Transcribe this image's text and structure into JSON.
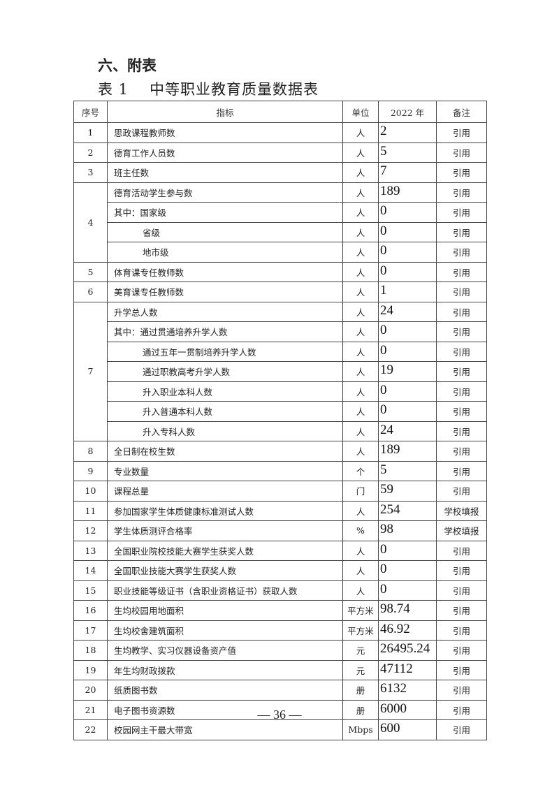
{
  "section_title": "六、附表",
  "table_title": {
    "number": "表 1",
    "name": "中等职业教育质量数据表"
  },
  "headers": [
    "序号",
    "指标",
    "单位",
    "2022 年",
    "备注"
  ],
  "groups": [
    {
      "no": "1",
      "rows": [
        {
          "label": "思政课程教师数",
          "unit": "人",
          "value": "2",
          "note": "引用"
        }
      ]
    },
    {
      "no": "2",
      "rows": [
        {
          "label": "德育工作人员数",
          "unit": "人",
          "value": "5",
          "note": "引用"
        }
      ]
    },
    {
      "no": "3",
      "rows": [
        {
          "label": "班主任数",
          "unit": "人",
          "value": "7",
          "note": "引用"
        }
      ]
    },
    {
      "no": "4",
      "rows": [
        {
          "label": "德育活动学生参与数",
          "unit": "人",
          "value": "189",
          "note": "引用"
        },
        {
          "label": "其中：国家级",
          "unit": "人",
          "value": "0",
          "note": "引用"
        },
        {
          "label": "省级",
          "unit": "人",
          "value": "0",
          "note": "引用",
          "sub": true
        },
        {
          "label": "地市级",
          "unit": "人",
          "value": "0",
          "note": "引用",
          "sub": true
        }
      ]
    },
    {
      "no": "5",
      "rows": [
        {
          "label": "体育课专任教师数",
          "unit": "人",
          "value": "0",
          "note": "引用"
        }
      ]
    },
    {
      "no": "6",
      "rows": [
        {
          "label": "美育课专任教师数",
          "unit": "人",
          "value": "1",
          "note": "引用"
        }
      ]
    },
    {
      "no": "7",
      "rows": [
        {
          "label": "升学总人数",
          "unit": "人",
          "value": "24",
          "note": "引用"
        },
        {
          "label": "其中：通过贯通培养升学人数",
          "unit": "人",
          "value": "0",
          "note": "引用"
        },
        {
          "label": "通过五年一贯制培养升学人数",
          "unit": "人",
          "value": "0",
          "note": "引用",
          "sub": true
        },
        {
          "label": "通过职教高考升学人数",
          "unit": "人",
          "value": "19",
          "note": "引用",
          "sub": true
        },
        {
          "label": "升入职业本科人数",
          "unit": "人",
          "value": "0",
          "note": "引用",
          "sub": true
        },
        {
          "label": "升入普通本科人数",
          "unit": "人",
          "value": "0",
          "note": "引用",
          "sub": true
        },
        {
          "label": "升入专科人数",
          "unit": "人",
          "value": "24",
          "note": "引用",
          "sub": true
        }
      ]
    },
    {
      "no": "8",
      "rows": [
        {
          "label": "全日制在校生数",
          "unit": "人",
          "value": "189",
          "note": "引用"
        }
      ]
    },
    {
      "no": "9",
      "rows": [
        {
          "label": "专业数量",
          "unit": "个",
          "value": "5",
          "note": "引用"
        }
      ]
    },
    {
      "no": "10",
      "rows": [
        {
          "label": "课程总量",
          "unit": "门",
          "value": "59",
          "note": "引用"
        }
      ]
    },
    {
      "no": "11",
      "rows": [
        {
          "label": "参加国家学生体质健康标准测试人数",
          "unit": "人",
          "value": "254",
          "note": "学校填报"
        }
      ]
    },
    {
      "no": "12",
      "rows": [
        {
          "label": "学生体质测评合格率",
          "unit": "%",
          "value": "98",
          "note": "学校填报"
        }
      ]
    },
    {
      "no": "13",
      "rows": [
        {
          "label": "全国职业院校技能大赛学生获奖人数",
          "unit": "人",
          "value": "0",
          "note": "引用"
        }
      ]
    },
    {
      "no": "14",
      "rows": [
        {
          "label": "全国职业技能大赛学生获奖人数",
          "unit": "人",
          "value": "0",
          "note": "引用"
        }
      ]
    },
    {
      "no": "15",
      "rows": [
        {
          "label": "职业技能等级证书（含职业资格证书）获取人数",
          "unit": "人",
          "value": "0",
          "note": "引用"
        }
      ]
    },
    {
      "no": "16",
      "rows": [
        {
          "label": "生均校园用地面积",
          "unit": "平方米",
          "value": "98.74",
          "note": "引用"
        }
      ]
    },
    {
      "no": "17",
      "rows": [
        {
          "label": "生均校舍建筑面积",
          "unit": "平方米",
          "value": "46.92",
          "note": "引用"
        }
      ]
    },
    {
      "no": "18",
      "rows": [
        {
          "label": "生均教学、实习仪器设备资产值",
          "unit": "元",
          "value": "26495.24",
          "note": "引用"
        }
      ]
    },
    {
      "no": "19",
      "rows": [
        {
          "label": "年生均财政拨款",
          "unit": "元",
          "value": "47112",
          "note": "引用"
        }
      ]
    },
    {
      "no": "20",
      "rows": [
        {
          "label": "纸质图书数",
          "unit": "册",
          "value": "6132",
          "note": "引用"
        }
      ]
    },
    {
      "no": "21",
      "rows": [
        {
          "label": "电子图书资源数",
          "unit": "册",
          "value": "6000",
          "note": "引用"
        }
      ]
    },
    {
      "no": "22",
      "rows": [
        {
          "label": "校园网主干最大带宽",
          "unit": "Mbps",
          "value": "600",
          "note": "引用"
        }
      ]
    }
  ],
  "page_number": "— 36 —"
}
